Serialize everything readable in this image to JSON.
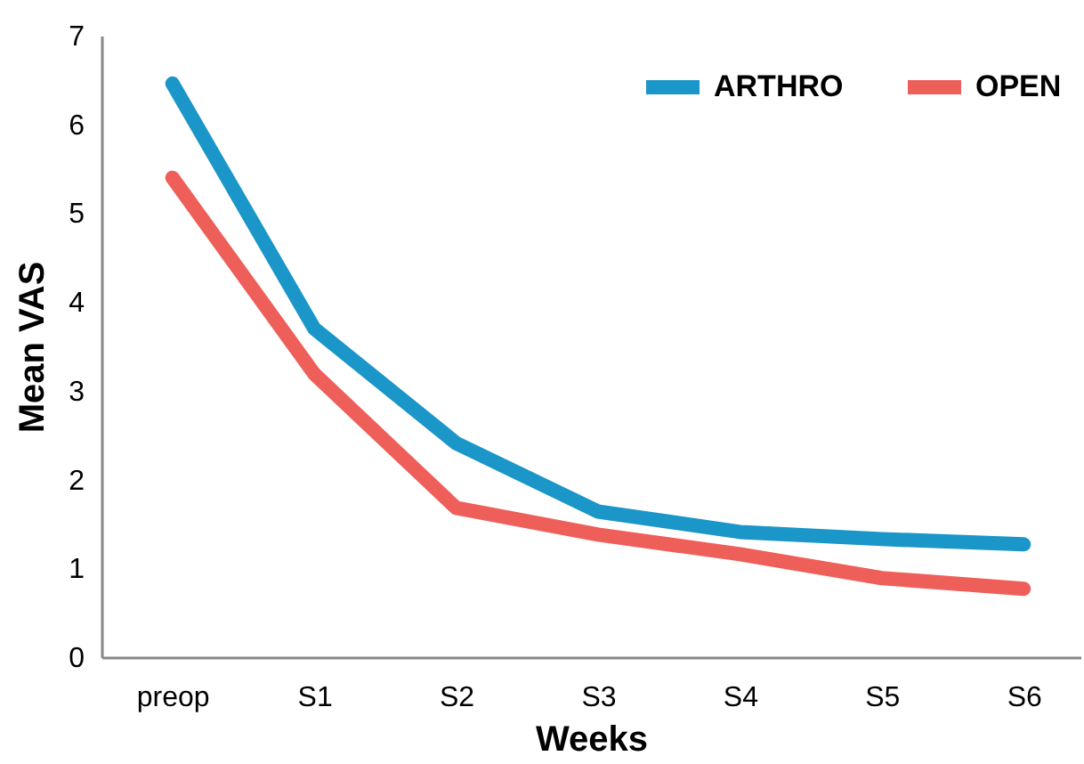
{
  "chart_data": {
    "type": "line",
    "xlabel": "Weeks",
    "ylabel": "Mean VAS",
    "categories": [
      "preop",
      "S1",
      "S2",
      "S3",
      "S4",
      "S5",
      "S6"
    ],
    "series": [
      {
        "name": "ARTHRO",
        "color": "#1b96c8",
        "values": [
          6.46,
          3.7,
          2.41,
          1.64,
          1.41,
          1.33,
          1.27
        ]
      },
      {
        "name": "OPEN",
        "color": "#ee5f5a",
        "values": [
          5.4,
          3.19,
          1.68,
          1.38,
          1.16,
          0.89,
          0.77
        ]
      }
    ],
    "ylim": [
      0,
      7
    ],
    "yticks": [
      0,
      1,
      2,
      3,
      4,
      5,
      6,
      7
    ],
    "grid": false,
    "legend": "top right",
    "marker": "none",
    "line_style": "solid"
  }
}
